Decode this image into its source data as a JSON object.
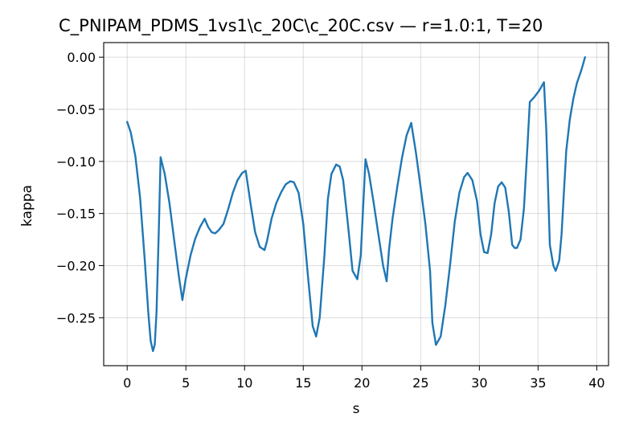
{
  "chart_data": {
    "type": "line",
    "title": "C_PNIPAM_PDMS_1vs1\\c_20C\\c_20C.csv — r=1.0:1, T=20",
    "xlabel": "s",
    "ylabel": "kappa",
    "xlim": [
      -2.0,
      41.0
    ],
    "ylim": [
      -0.296,
      0.014
    ],
    "xticks": [
      0,
      5,
      10,
      15,
      20,
      25,
      30,
      35,
      40
    ],
    "xtick_labels": [
      "0",
      "5",
      "10",
      "15",
      "20",
      "25",
      "30",
      "35",
      "40"
    ],
    "yticks": [
      0.0,
      -0.05,
      -0.1,
      -0.15,
      -0.2,
      -0.25
    ],
    "ytick_labels": [
      "0.00",
      "−0.05",
      "−0.10",
      "−0.15",
      "−0.20",
      "−0.25"
    ],
    "grid": true,
    "color": "#1f77b4",
    "series": [
      {
        "x": [
          0.0,
          0.3,
          0.7,
          1.1,
          1.5,
          1.8,
          2.0,
          2.2,
          2.35,
          2.5,
          2.7,
          2.85,
          3.2,
          3.6,
          4.0,
          4.4,
          4.7,
          5.0,
          5.4,
          5.8,
          6.2,
          6.6,
          6.9,
          7.2,
          7.5,
          7.8,
          8.2,
          8.6,
          9.0,
          9.4,
          9.8,
          10.1,
          10.5,
          10.9,
          11.3,
          11.7,
          11.9,
          12.3,
          12.7,
          13.1,
          13.5,
          13.9,
          14.2,
          14.6,
          15.0,
          15.4,
          15.8,
          16.1,
          16.4,
          16.8,
          17.1,
          17.4,
          17.8,
          18.1,
          18.4,
          18.8,
          19.2,
          19.6,
          19.9,
          20.3,
          20.6,
          21.0,
          21.4,
          21.8,
          22.1,
          22.3,
          22.6,
          23.0,
          23.4,
          23.8,
          24.2,
          24.6,
          25.0,
          25.4,
          25.8,
          26.0,
          26.3,
          26.7,
          27.1,
          27.5,
          27.9,
          28.3,
          28.7,
          29.0,
          29.4,
          29.8,
          30.1,
          30.4,
          30.7,
          31.0,
          31.3,
          31.6,
          31.9,
          32.2,
          32.5,
          32.8,
          33.0,
          33.2,
          33.5,
          33.8,
          34.1,
          34.3,
          34.7,
          35.1,
          35.5,
          35.7,
          36.0,
          36.3,
          36.5,
          36.8,
          37.0,
          37.2,
          37.4,
          37.7,
          38.0,
          38.3,
          38.7,
          39.0
        ],
        "values": [
          -0.062,
          -0.072,
          -0.095,
          -0.135,
          -0.195,
          -0.245,
          -0.272,
          -0.282,
          -0.276,
          -0.245,
          -0.165,
          -0.096,
          -0.112,
          -0.14,
          -0.175,
          -0.21,
          -0.233,
          -0.212,
          -0.19,
          -0.174,
          -0.163,
          -0.155,
          -0.163,
          -0.168,
          -0.169,
          -0.166,
          -0.16,
          -0.146,
          -0.13,
          -0.118,
          -0.111,
          -0.109,
          -0.14,
          -0.168,
          -0.182,
          -0.185,
          -0.177,
          -0.155,
          -0.14,
          -0.13,
          -0.122,
          -0.119,
          -0.12,
          -0.13,
          -0.16,
          -0.21,
          -0.258,
          -0.268,
          -0.25,
          -0.19,
          -0.136,
          -0.112,
          -0.103,
          -0.105,
          -0.118,
          -0.16,
          -0.205,
          -0.213,
          -0.19,
          -0.098,
          -0.112,
          -0.14,
          -0.17,
          -0.2,
          -0.215,
          -0.185,
          -0.155,
          -0.125,
          -0.097,
          -0.075,
          -0.063,
          -0.092,
          -0.125,
          -0.16,
          -0.205,
          -0.255,
          -0.276,
          -0.268,
          -0.238,
          -0.2,
          -0.158,
          -0.13,
          -0.115,
          -0.111,
          -0.118,
          -0.138,
          -0.17,
          -0.187,
          -0.188,
          -0.17,
          -0.14,
          -0.124,
          -0.12,
          -0.125,
          -0.148,
          -0.18,
          -0.183,
          -0.183,
          -0.175,
          -0.145,
          -0.085,
          -0.043,
          -0.038,
          -0.032,
          -0.024,
          -0.07,
          -0.18,
          -0.2,
          -0.205,
          -0.195,
          -0.17,
          -0.13,
          -0.09,
          -0.06,
          -0.04,
          -0.025,
          -0.012,
          0.0
        ]
      }
    ]
  }
}
